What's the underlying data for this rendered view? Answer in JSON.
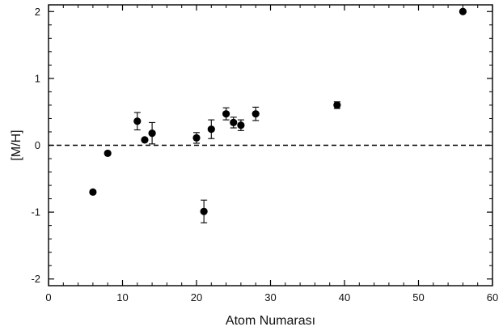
{
  "chart_data": {
    "type": "scatter",
    "title": "",
    "xlabel": "Atom Numarası",
    "ylabel": "[M/H]",
    "xlim": [
      0,
      60
    ],
    "ylim": [
      -2.1,
      2.1
    ],
    "x_ticks": [
      0,
      10,
      20,
      30,
      40,
      50,
      60
    ],
    "y_ticks": [
      -2,
      -1,
      0,
      1,
      2
    ],
    "x_tick_labels": [
      "0",
      "10",
      "20",
      "30",
      "40",
      "50",
      "60"
    ],
    "y_tick_labels": [
      "-2",
      "-1",
      "0",
      "1",
      "2"
    ],
    "grid": false,
    "legend": "none",
    "reference_line": {
      "y": 0,
      "style": "dashed"
    },
    "marker_color": "#000000",
    "points": [
      {
        "x": 6,
        "y": -0.7,
        "err": null
      },
      {
        "x": 8,
        "y": -0.12,
        "err": null
      },
      {
        "x": 12,
        "y": 0.36,
        "err": 0.13
      },
      {
        "x": 13,
        "y": 0.08,
        "err": null
      },
      {
        "x": 14,
        "y": 0.18,
        "err": 0.16
      },
      {
        "x": 20,
        "y": 0.11,
        "err": 0.08
      },
      {
        "x": 21,
        "y": -0.99,
        "err": 0.17
      },
      {
        "x": 22,
        "y": 0.24,
        "err": 0.14
      },
      {
        "x": 24,
        "y": 0.47,
        "err": 0.09
      },
      {
        "x": 25,
        "y": 0.34,
        "err": 0.08
      },
      {
        "x": 26,
        "y": 0.3,
        "err": 0.08
      },
      {
        "x": 28,
        "y": 0.47,
        "err": 0.1
      },
      {
        "x": 39,
        "y": 0.6,
        "err": 0.05
      },
      {
        "x": 56,
        "y": 2.0,
        "err": null
      }
    ]
  }
}
